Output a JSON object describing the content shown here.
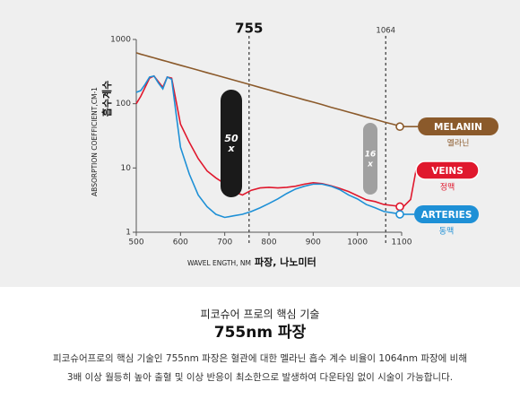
{
  "chart_data": {
    "type": "line",
    "y_scale": "log",
    "xlabel": "WAVEL ENGTH, NM",
    "xlabel_ko": "파장, 나노미터",
    "ylabel": "ABSORPTION COEFFICIENT,CM-1",
    "ylabel_ko": "흡수계수",
    "xlim": [
      500,
      1100
    ],
    "xticks": [
      500,
      600,
      700,
      800,
      900,
      1000,
      1100
    ],
    "ylim": [
      1,
      1000
    ],
    "yticks": [
      1,
      10,
      100,
      1000
    ],
    "markers": [
      755,
      1064
    ],
    "annotations": [
      {
        "lines": [
          "50",
          "x"
        ],
        "color": "#1a1a1a"
      },
      {
        "lines": [
          "16",
          "x"
        ],
        "color": "#a0a0a0"
      }
    ],
    "x": [
      500,
      510,
      520,
      530,
      540,
      550,
      560,
      570,
      580,
      590,
      600,
      620,
      640,
      660,
      680,
      700,
      720,
      740,
      760,
      780,
      800,
      820,
      840,
      860,
      880,
      900,
      920,
      940,
      960,
      980,
      1000,
      1020,
      1040,
      1060,
      1080,
      1100
    ],
    "series": [
      {
        "name": "MELANIN",
        "name_ko": "멜라닌",
        "color": "#8b5a2b",
        "values": [
          620,
          590,
          565,
          540,
          517,
          494,
          473,
          453,
          433,
          414,
          396,
          363,
          333,
          304,
          279,
          255,
          234,
          214,
          196,
          179,
          164,
          150,
          137,
          126,
          115,
          106,
          97,
          88,
          81,
          74,
          68,
          62,
          57,
          52,
          48,
          44
        ]
      },
      {
        "name": "VEINS",
        "name_ko": "정맥",
        "color": "#e0182d",
        "values": [
          100,
          130,
          180,
          250,
          270,
          220,
          180,
          260,
          250,
          110,
          48,
          25,
          14,
          9,
          7,
          5.7,
          4.3,
          3.8,
          4.5,
          4.9,
          5,
          4.9,
          5,
          5.2,
          5.6,
          5.9,
          5.7,
          5.3,
          4.8,
          4.3,
          3.7,
          3.2,
          3.0,
          2.7,
          2.6,
          2.5
        ]
      },
      {
        "name": "ARTERIES",
        "name_ko": "동맥",
        "color": "#1e90d6",
        "values": [
          150,
          160,
          200,
          260,
          270,
          210,
          170,
          260,
          240,
          70,
          21,
          8,
          3.8,
          2.5,
          1.9,
          1.7,
          1.8,
          1.9,
          2.1,
          2.4,
          2.8,
          3.3,
          4,
          4.7,
          5.2,
          5.6,
          5.6,
          5.2,
          4.6,
          3.8,
          3.3,
          2.7,
          2.4,
          2.1,
          2.0,
          1.9
        ]
      }
    ]
  },
  "caption": {
    "subtitle": "피코슈어 프로의 핵심 기술",
    "title": "755nm 파장",
    "body": [
      "피코슈어프로의 핵심 기술인 755nm 파장은 혈관에 대한 멜라닌 흡수 계수 비율이 1064nm 파장에 비해",
      "3배 이상 월등히 높아 출혈 및 이상 반응이 최소한으로 발생하여 다운타임 없이 시술이 가능합니다."
    ]
  }
}
